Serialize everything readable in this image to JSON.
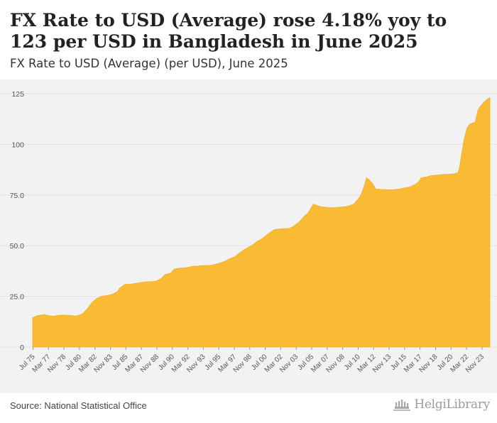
{
  "header": {
    "title": "FX Rate to USD (Average) rose 4.18% yoy to 123 per USD in Bangladesh in June 2025",
    "subtitle": "FX Rate to USD (Average) (per USD), June 2025"
  },
  "footer": {
    "source": "Source: National Statistical Office",
    "logo_text": "HelgiLibrary"
  },
  "colors": {
    "area_fill": "#f8bb33",
    "area_edge": "#f2b02a",
    "grid": "#e2e2e2",
    "axis_text": "#555555",
    "background": "#f2f2f2"
  },
  "chart_data": {
    "type": "area",
    "title": "FX Rate to USD (Average) (per USD), June 2025",
    "xlabel": "",
    "ylabel": "",
    "ylim": [
      0,
      125
    ],
    "yticks": [
      0,
      25.0,
      50.0,
      75.0,
      100,
      125
    ],
    "ytick_labels": [
      "0",
      "25.0",
      "50.0",
      "75.0",
      "100",
      "125"
    ],
    "xlim": [
      1975.5,
      2025.5
    ],
    "xtick_labels": [
      "Jul 75",
      "Mar 77",
      "Nov 78",
      "Jul 80",
      "Mar 82",
      "Nov 83",
      "Jul 85",
      "Mar 87",
      "Nov 88",
      "Jul 90",
      "Mar 92",
      "Nov 93",
      "Jul 95",
      "Mar 97",
      "Nov 98",
      "Jul 00",
      "Mar 02",
      "Nov 03",
      "Jul 05",
      "Mar 07",
      "Nov 08",
      "Jul 10",
      "Mar 12",
      "Nov 13",
      "Jul 15",
      "Mar 17",
      "Nov 18",
      "Jul 20",
      "Mar 22",
      "Nov 23"
    ],
    "series": [
      {
        "name": "FX Rate to USD (Average)",
        "unit": "per USD",
        "x": [
          1975.5,
          1976.0,
          1976.8,
          1977.3,
          1977.8,
          1978.2,
          1978.8,
          1979.5,
          1980.2,
          1980.5,
          1981.0,
          1981.5,
          1982.0,
          1982.5,
          1983.0,
          1983.6,
          1984.2,
          1984.8,
          1985.0,
          1985.6,
          1986.0,
          1986.6,
          1987.0,
          1987.6,
          1988.0,
          1988.6,
          1989.0,
          1989.6,
          1990.0,
          1990.6,
          1991.0,
          1991.6,
          1992.0,
          1992.6,
          1993.0,
          1993.6,
          1994.0,
          1995.0,
          1995.6,
          1996.0,
          1996.6,
          1997.0,
          1997.6,
          1998.0,
          1998.6,
          1999.0,
          1999.6,
          2000.0,
          2000.6,
          2001.0,
          2001.6,
          2002.0,
          2002.6,
          2003.0,
          2003.6,
          2004.0,
          2004.6,
          2005.0,
          2005.3,
          2005.6,
          2006.0,
          2006.2,
          2006.6,
          2007.0,
          2007.5,
          2008.0,
          2008.5,
          2009.0,
          2009.5,
          2010.0,
          2010.6,
          2011.0,
          2011.4,
          2011.8,
          2012.0,
          2012.3,
          2012.7,
          2013.0,
          2013.5,
          2014.0,
          2014.5,
          2015.0,
          2015.6,
          2016.0,
          2016.6,
          2017.0,
          2017.6,
          2018.0,
          2018.6,
          2019.0,
          2019.6,
          2020.0,
          2020.6,
          2021.0,
          2021.6,
          2022.0,
          2022.2,
          2022.4,
          2022.7,
          2023.0,
          2023.3,
          2023.6,
          2023.9,
          2024.2,
          2024.5,
          2024.8,
          2025.0,
          2025.3,
          2025.5
        ],
        "values": [
          14.5,
          15.5,
          16.0,
          15.5,
          15.2,
          15.6,
          15.8,
          15.6,
          15.3,
          15.6,
          16.5,
          19.0,
          22.0,
          24.0,
          25.0,
          25.4,
          26.0,
          27.5,
          29.0,
          31.0,
          31.0,
          31.3,
          31.6,
          32.0,
          32.2,
          32.3,
          32.5,
          34.0,
          35.8,
          36.5,
          38.5,
          39.0,
          39.0,
          39.4,
          39.8,
          40.0,
          40.2,
          40.3,
          41.0,
          41.5,
          42.5,
          43.5,
          44.5,
          46.0,
          48.0,
          49.0,
          50.5,
          52.0,
          53.5,
          55.0,
          57.0,
          58.0,
          58.3,
          58.4,
          58.6,
          59.5,
          61.5,
          63.5,
          65.0,
          66.0,
          69.0,
          70.5,
          69.8,
          69.2,
          69.0,
          68.7,
          68.8,
          69.0,
          69.2,
          69.5,
          70.5,
          72.5,
          75.0,
          80.0,
          83.5,
          82.5,
          80.5,
          78.0,
          77.8,
          77.7,
          77.6,
          77.7,
          78.0,
          78.4,
          78.8,
          79.5,
          81.0,
          83.5,
          84.0,
          84.5,
          84.8,
          85.0,
          85.2,
          85.3,
          85.5,
          86.0,
          89.0,
          95.0,
          103.0,
          108.0,
          110.0,
          110.5,
          111.0,
          117.0,
          119.0,
          120.5,
          121.5,
          122.5,
          123.0
        ]
      }
    ]
  }
}
